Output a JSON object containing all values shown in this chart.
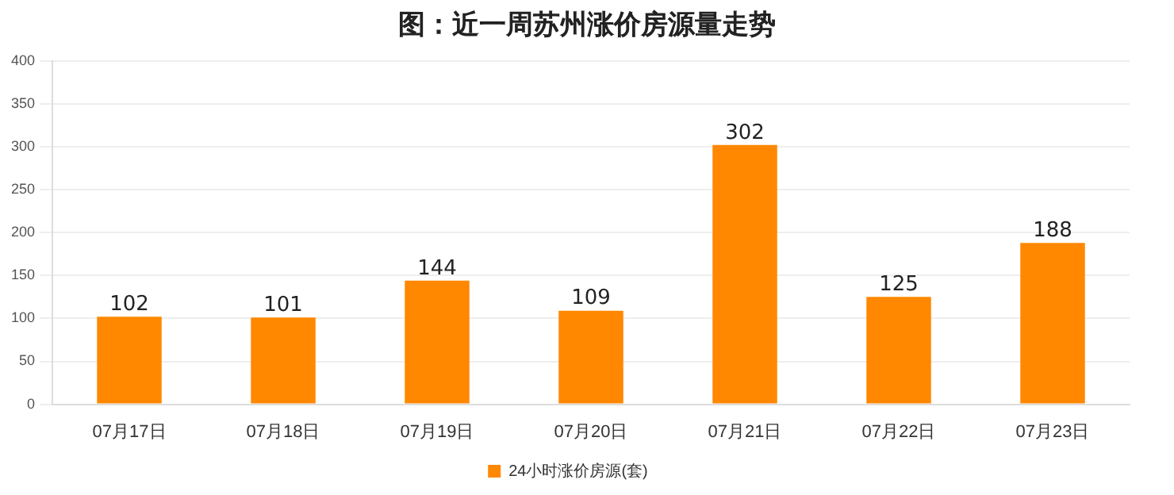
{
  "chart_data": {
    "type": "bar",
    "title": "图：近一周苏州涨价房源量走势",
    "categories": [
      "07月17日",
      "07月18日",
      "07月19日",
      "07月20日",
      "07月21日",
      "07月22日",
      "07月23日"
    ],
    "series": [
      {
        "name": "24小时涨价房源(套)",
        "color": "#ff8800",
        "values": [
          102,
          101,
          144,
          109,
          302,
          125,
          188
        ]
      }
    ],
    "ylim": [
      0,
      400
    ],
    "yticks": [
      0,
      50,
      100,
      150,
      200,
      250,
      300,
      350,
      400
    ],
    "grid": "y",
    "legend": "bottom",
    "data_labels": true
  }
}
